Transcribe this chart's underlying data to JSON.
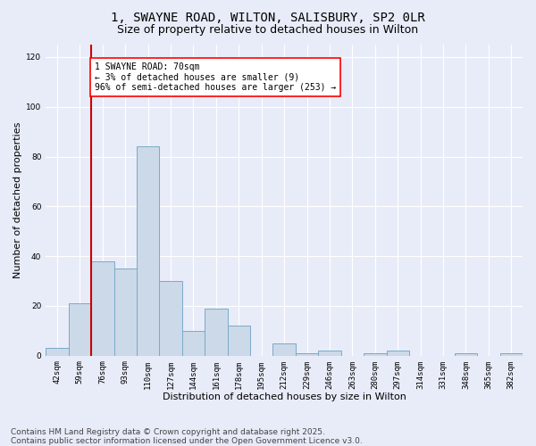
{
  "title_line1": "1, SWAYNE ROAD, WILTON, SALISBURY, SP2 0LR",
  "title_line2": "Size of property relative to detached houses in Wilton",
  "xlabel": "Distribution of detached houses by size in Wilton",
  "ylabel": "Number of detached properties",
  "bin_labels": [
    "42sqm",
    "59sqm",
    "76sqm",
    "93sqm",
    "110sqm",
    "127sqm",
    "144sqm",
    "161sqm",
    "178sqm",
    "195sqm",
    "212sqm",
    "229sqm",
    "246sqm",
    "263sqm",
    "280sqm",
    "297sqm",
    "314sqm",
    "331sqm",
    "348sqm",
    "365sqm",
    "382sqm"
  ],
  "bar_values": [
    3,
    21,
    38,
    35,
    84,
    30,
    10,
    19,
    12,
    0,
    5,
    1,
    2,
    0,
    1,
    2,
    0,
    0,
    1,
    0,
    1
  ],
  "bar_color": "#ccd9e8",
  "bar_edge_color": "#7aaac8",
  "vline_color": "#cc0000",
  "vline_x_index": 1,
  "annotation_text": "1 SWAYNE ROAD: 70sqm\n← 3% of detached houses are smaller (9)\n96% of semi-detached houses are larger (253) →",
  "ylim": [
    0,
    125
  ],
  "yticks": [
    0,
    20,
    40,
    60,
    80,
    100,
    120
  ],
  "fig_bg_color": "#e8ecf8",
  "plot_bg_color": "#e8ecf8",
  "grid_color": "#ffffff",
  "footer_line1": "Contains HM Land Registry data © Crown copyright and database right 2025.",
  "footer_line2": "Contains public sector information licensed under the Open Government Licence v3.0.",
  "title_fontsize": 10,
  "subtitle_fontsize": 9,
  "label_fontsize": 8,
  "tick_fontsize": 6.5,
  "footer_fontsize": 6.5,
  "annot_fontsize": 7
}
